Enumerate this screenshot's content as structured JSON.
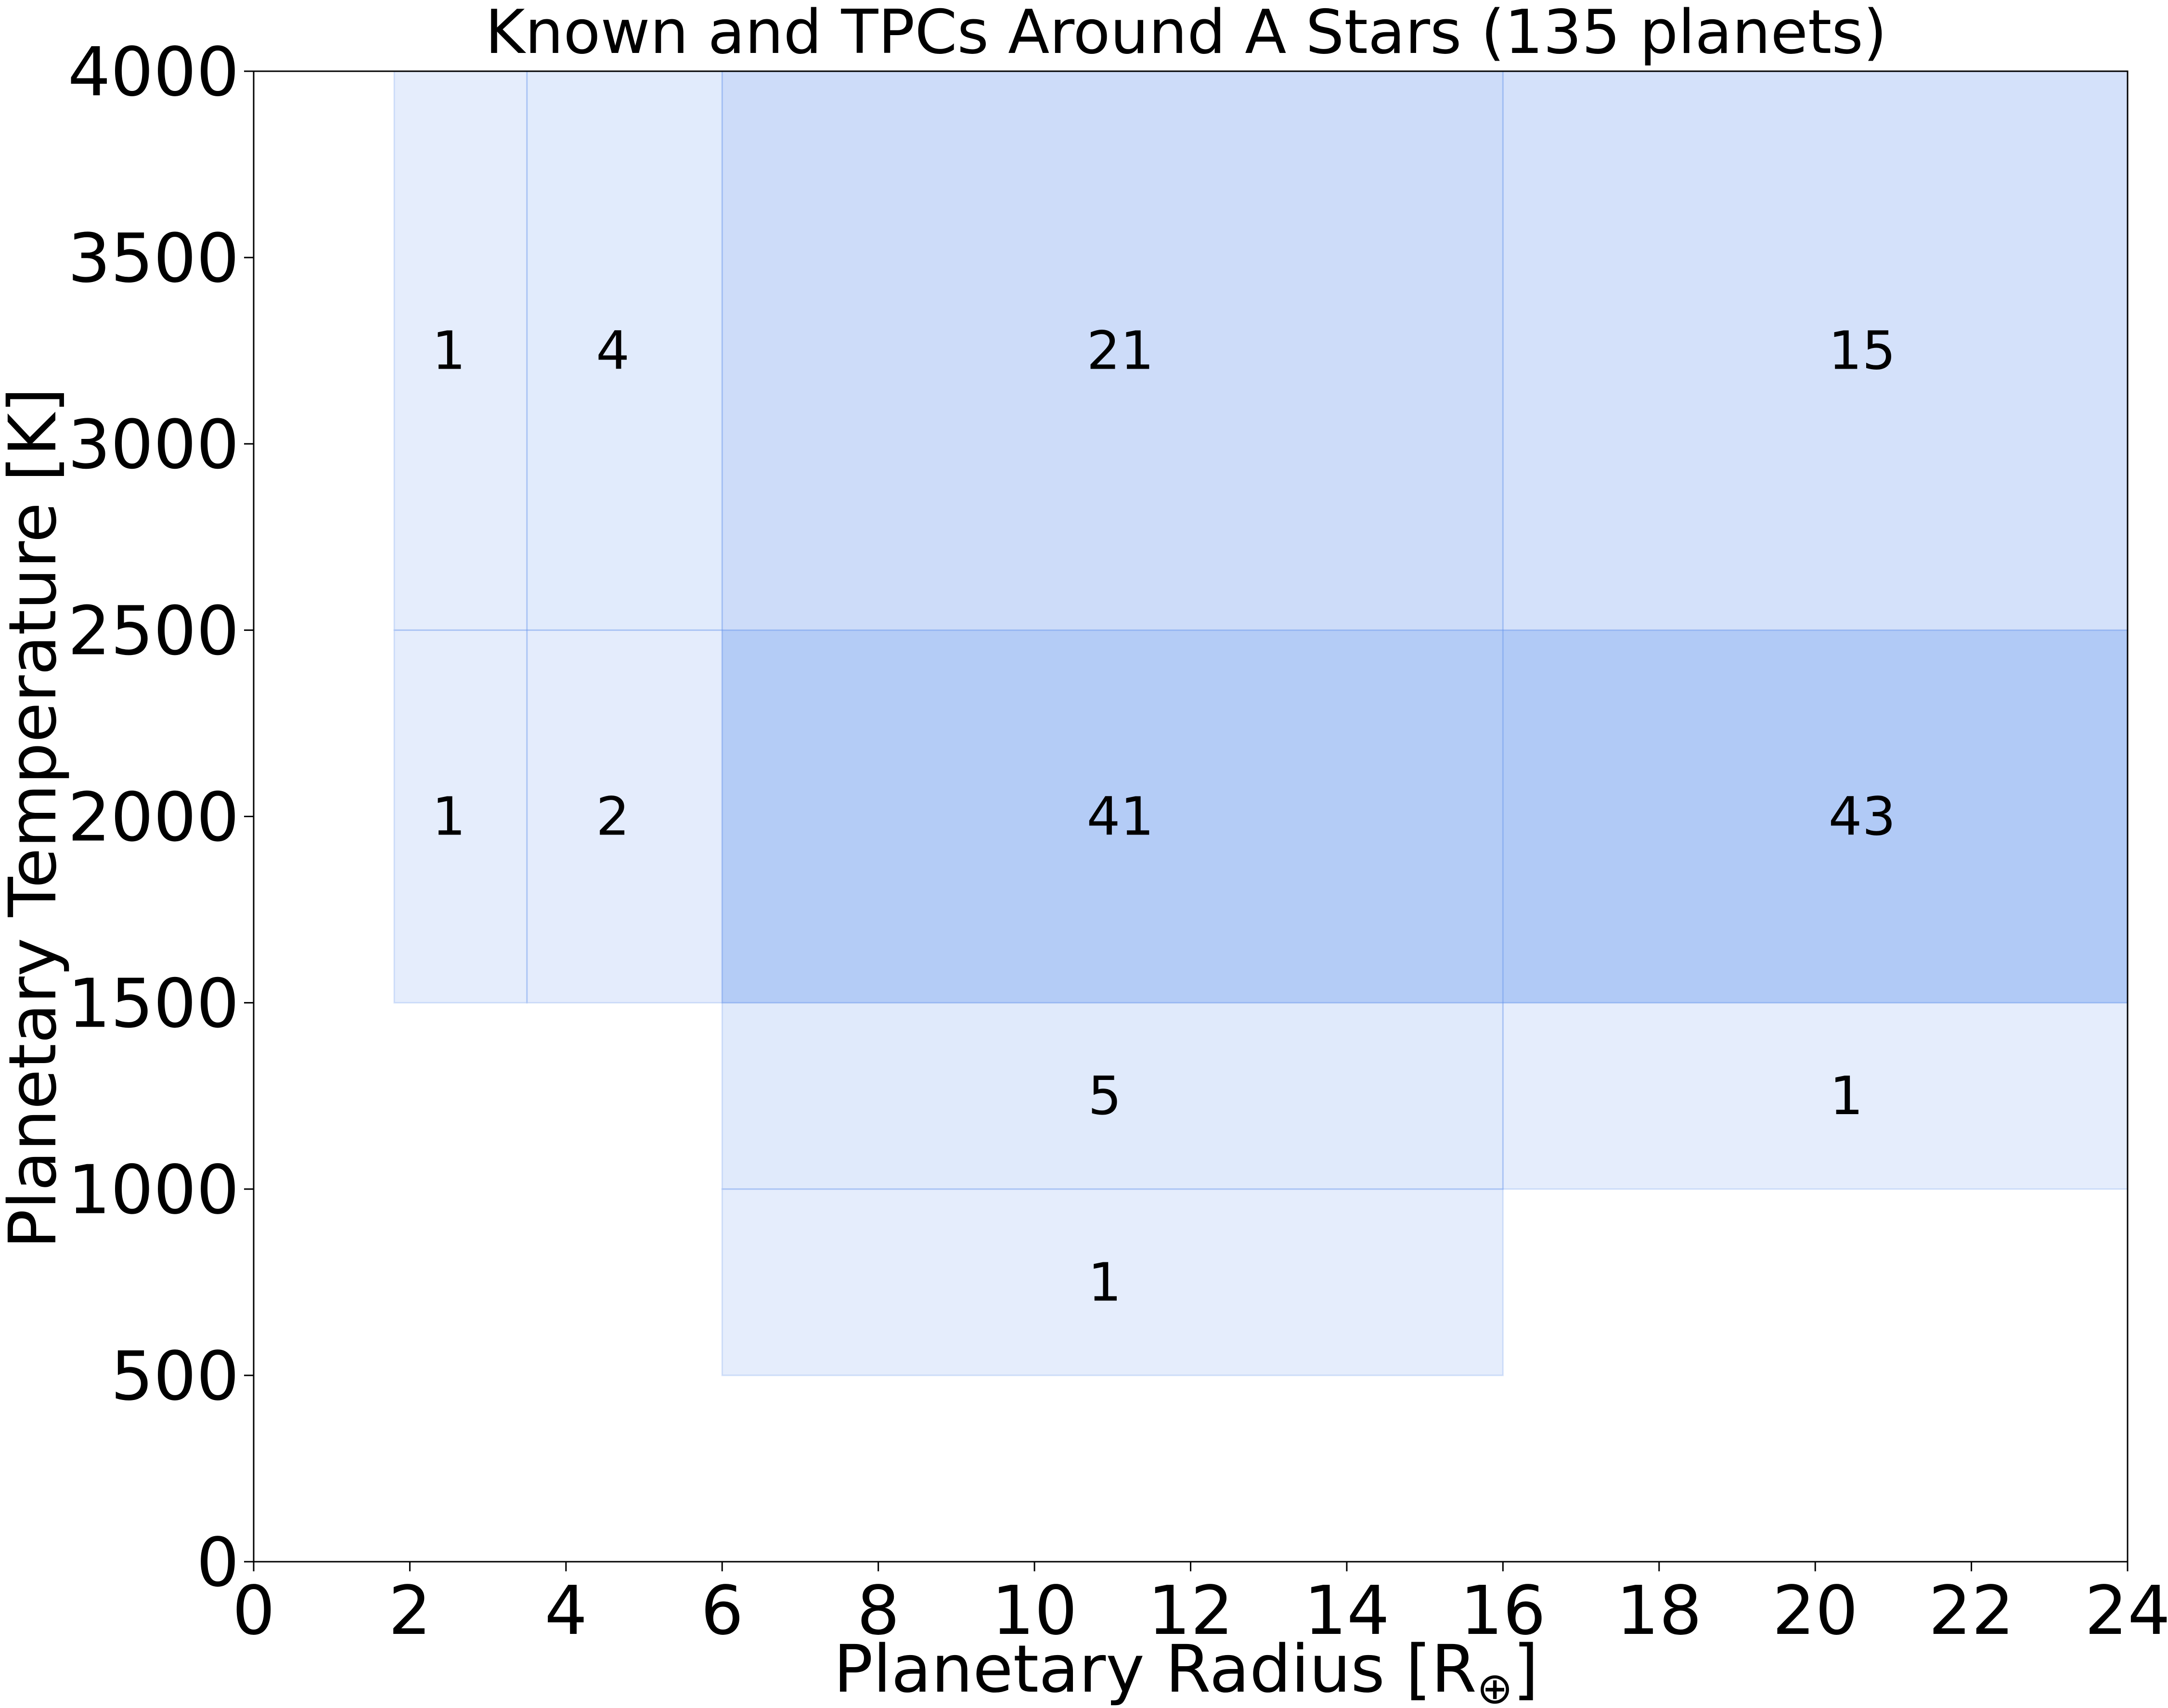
{
  "chart_data": {
    "type": "heatmap",
    "title": "Known and TPCs Around A Stars (135 planets)",
    "xlabel": "Planetary Radius [R",
    "xlabel_sub": "⊕",
    "xlabel_close": "]",
    "ylabel": "Planetary Temperature [K]",
    "xlim": [
      0,
      24
    ],
    "ylim": [
      0,
      4000
    ],
    "xticks": [
      0,
      2,
      4,
      6,
      8,
      10,
      12,
      14,
      16,
      18,
      20,
      22,
      24
    ],
    "yticks": [
      0,
      500,
      1000,
      1500,
      2000,
      2500,
      3000,
      3500,
      4000
    ],
    "grid": false,
    "cell_color": "#6495ED",
    "cells": [
      {
        "x0": 1.8,
        "x1": 3.5,
        "y0": 2500,
        "y1": 4000,
        "count": 1,
        "label_x": 2.5,
        "label_y": 3250
      },
      {
        "x0": 3.5,
        "x1": 6,
        "y0": 2500,
        "y1": 4000,
        "count": 4,
        "label_x": 4.6,
        "label_y": 3250
      },
      {
        "x0": 6,
        "x1": 16,
        "y0": 2500,
        "y1": 4000,
        "count": 21,
        "label_x": 11.1,
        "label_y": 3250
      },
      {
        "x0": 16,
        "x1": 24,
        "y0": 2500,
        "y1": 4000,
        "count": 15,
        "label_x": 20.6,
        "label_y": 3250
      },
      {
        "x0": 1.8,
        "x1": 3.5,
        "y0": 1500,
        "y1": 2500,
        "count": 1,
        "label_x": 2.5,
        "label_y": 2000
      },
      {
        "x0": 3.5,
        "x1": 6,
        "y0": 1500,
        "y1": 2500,
        "count": 2,
        "label_x": 4.6,
        "label_y": 2000
      },
      {
        "x0": 6,
        "x1": 16,
        "y0": 1500,
        "y1": 2500,
        "count": 41,
        "label_x": 11.1,
        "label_y": 2000
      },
      {
        "x0": 16,
        "x1": 24,
        "y0": 1500,
        "y1": 2500,
        "count": 43,
        "label_x": 20.6,
        "label_y": 2000
      },
      {
        "x0": 6,
        "x1": 16,
        "y0": 1000,
        "y1": 1500,
        "count": 5,
        "label_x": 10.9,
        "label_y": 1250
      },
      {
        "x0": 16,
        "x1": 24,
        "y0": 1000,
        "y1": 1500,
        "count": 1,
        "label_x": 20.4,
        "label_y": 1250
      },
      {
        "x0": 6,
        "x1": 16,
        "y0": 500,
        "y1": 1000,
        "count": 1,
        "label_x": 10.9,
        "label_y": 750
      }
    ]
  }
}
